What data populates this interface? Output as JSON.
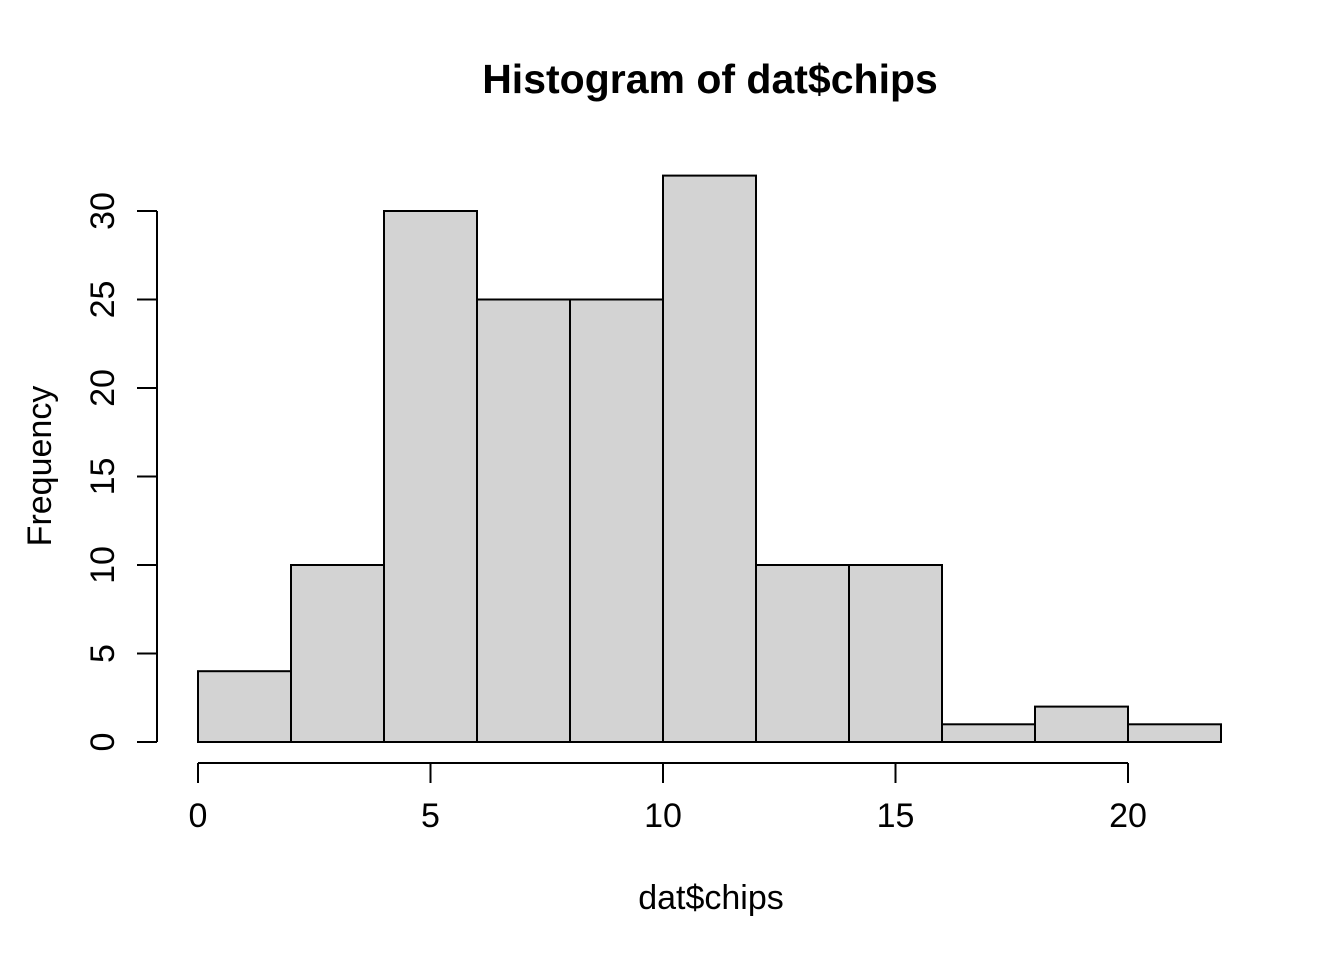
{
  "chart_data": {
    "type": "bar",
    "subtype": "histogram",
    "title": "Histogram of dat$chips",
    "xlabel": "dat$chips",
    "ylabel": "Frequency",
    "breaks": [
      0,
      2,
      4,
      6,
      8,
      10,
      12,
      14,
      16,
      18,
      20,
      22
    ],
    "counts": [
      4,
      10,
      30,
      25,
      25,
      32,
      10,
      10,
      1,
      2,
      1
    ],
    "x_ticks": [
      0,
      5,
      10,
      15,
      20
    ],
    "y_ticks": [
      0,
      5,
      10,
      15,
      20,
      25,
      30
    ],
    "xlim": [
      0,
      22
    ],
    "ylim": [
      0,
      32
    ],
    "grid": false,
    "legend": null,
    "bar_fill": "#d3d3d3",
    "bar_stroke": "#000000",
    "axis_color": "#000000",
    "text_color": "#000000",
    "background": "#ffffff"
  }
}
